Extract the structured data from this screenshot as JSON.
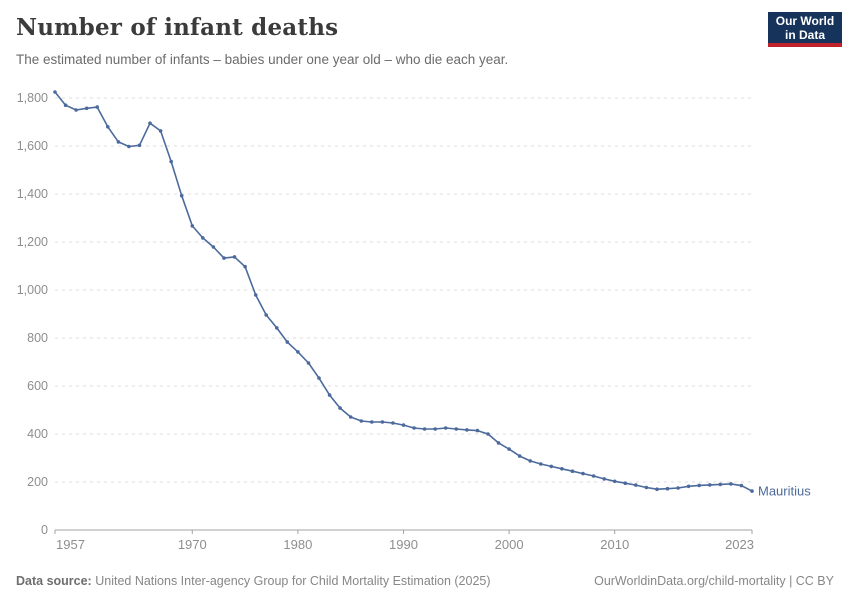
{
  "header": {
    "title": "Number of infant deaths",
    "subtitle": "The estimated number of infants – babies under one year old – who die each year.",
    "logo_line1": "Our World",
    "logo_line2": "in Data"
  },
  "colors": {
    "series_blue": "#4C6A9C",
    "logo_navy": "#15335b",
    "logo_red": "#c0222c",
    "gridline": "#dedede",
    "axis": "#a3a3a3",
    "tick_label": "#8e8e8e"
  },
  "chart_data": {
    "type": "line",
    "title": "Number of infant deaths",
    "subtitle": "The estimated number of infants – babies under one year old – who die each year.",
    "xlabel": "",
    "ylabel": "",
    "xlim": [
      1957,
      2023
    ],
    "ylim": [
      0,
      1830
    ],
    "x_ticks": [
      1957,
      1970,
      1980,
      1990,
      2000,
      2010,
      2023
    ],
    "y_ticks": [
      0,
      200,
      400,
      600,
      800,
      1000,
      1200,
      1400,
      1600,
      1800
    ],
    "grid": "horizontal-dashed",
    "legend_position": "end-of-line-label",
    "series": [
      {
        "name": "Mauritius",
        "x": [
          1957,
          1958,
          1959,
          1960,
          1961,
          1962,
          1963,
          1964,
          1965,
          1966,
          1967,
          1968,
          1969,
          1970,
          1971,
          1972,
          1973,
          1974,
          1975,
          1976,
          1977,
          1978,
          1979,
          1980,
          1981,
          1982,
          1983,
          1984,
          1985,
          1986,
          1987,
          1988,
          1989,
          1990,
          1991,
          1992,
          1993,
          1994,
          1995,
          1996,
          1997,
          1998,
          1999,
          2000,
          2001,
          2002,
          2003,
          2004,
          2005,
          2006,
          2007,
          2008,
          2009,
          2010,
          2011,
          2012,
          2013,
          2014,
          2015,
          2016,
          2017,
          2018,
          2019,
          2020,
          2021,
          2022,
          2023
        ],
        "values": [
          1825,
          1770,
          1750,
          1757,
          1762,
          1680,
          1617,
          1598,
          1603,
          1695,
          1663,
          1535,
          1393,
          1267,
          1217,
          1179,
          1133,
          1138,
          1097,
          979,
          896,
          842,
          783,
          742,
          696,
          633,
          562,
          508,
          471,
          454,
          450,
          450,
          446,
          437,
          425,
          421,
          421,
          425,
          421,
          417,
          414,
          400,
          363,
          337,
          308,
          288,
          275,
          265,
          255,
          245,
          235,
          225,
          213,
          203,
          195,
          187,
          177,
          170,
          172,
          175,
          182,
          186,
          188,
          190,
          192,
          185,
          162
        ]
      }
    ]
  },
  "footer": {
    "datasource_label": "Data source:",
    "datasource_text": "United Nations Inter-agency Group for Child Mortality Estimation (2025)",
    "attribution": "OurWorldinData.org/child-mortality | CC BY"
  }
}
